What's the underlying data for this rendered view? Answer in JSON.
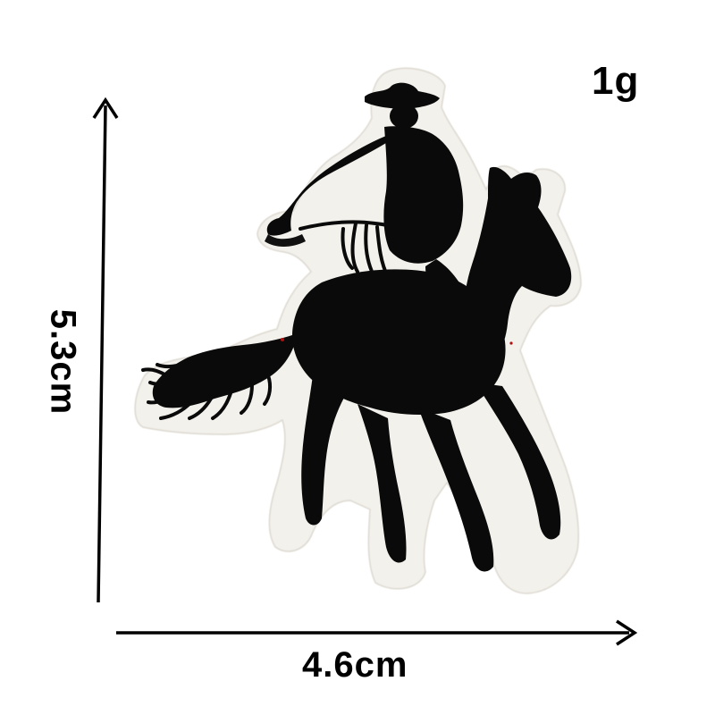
{
  "product": {
    "weight": "1g",
    "width": "4.6cm",
    "height": "5.3cm"
  },
  "colors": {
    "background": "#ffffff",
    "patch_backing": "#f3f1ec",
    "embroidery": "#0a0a0a",
    "arrows": "#000000"
  },
  "icons": {
    "patch": "cowboy-on-horse-embroidered-patch",
    "width_arrow": "right-arrow",
    "height_arrow": "up-arrow"
  }
}
